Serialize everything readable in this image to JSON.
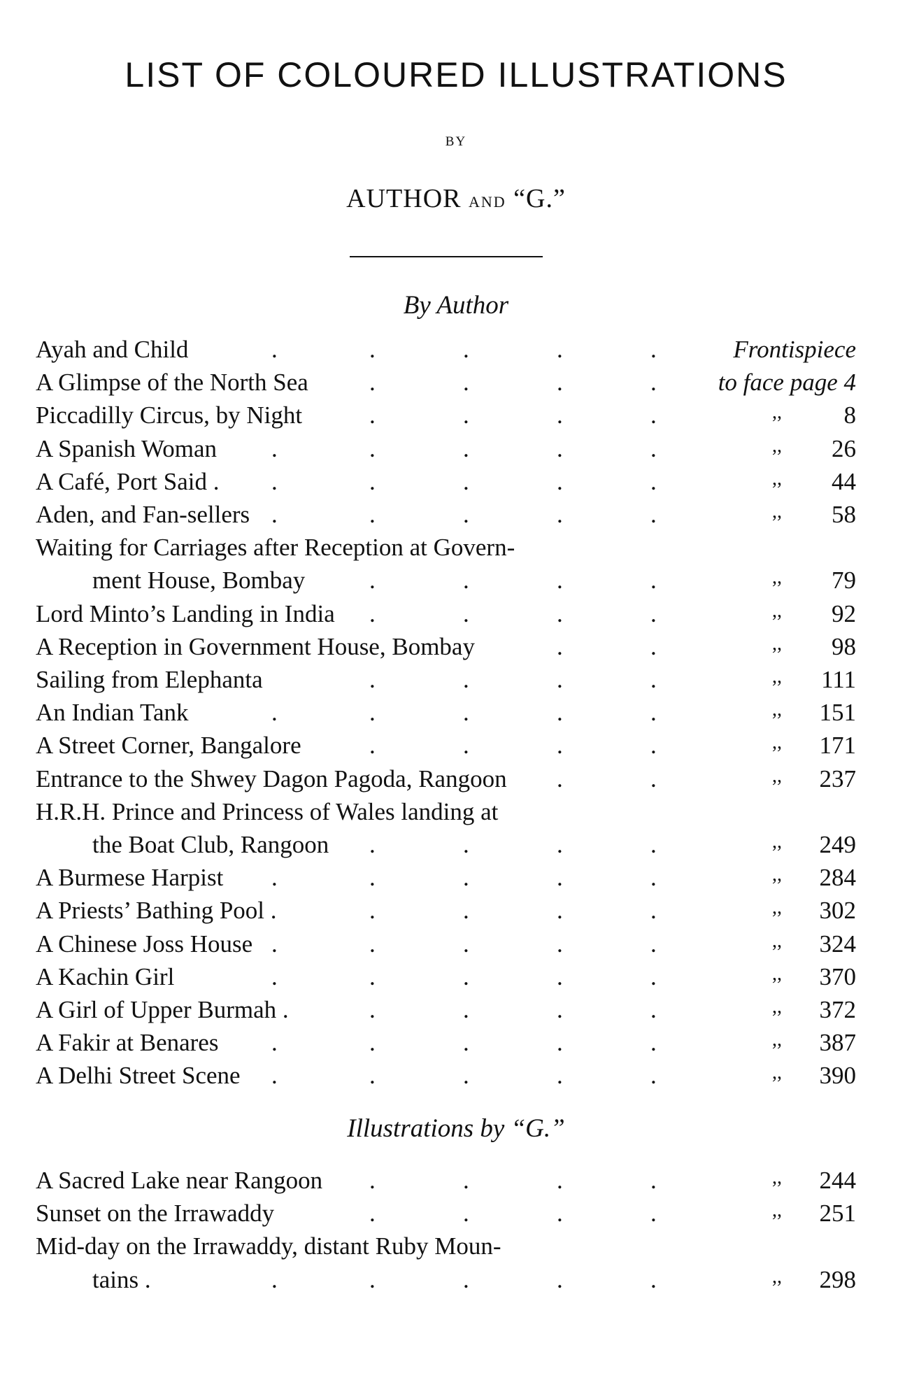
{
  "title": "LIST OF COLOURED ILLUSTRATIONS",
  "by": "BY",
  "authors": {
    "first": "AUTHOR",
    "and": "AND",
    "second": "“G.”"
  },
  "sections": [
    {
      "heading": "By Author",
      "entries": [
        {
          "title": "Ayah and Child",
          "ditto": "",
          "page": "Frontispiece"
        },
        {
          "title": "A Glimpse of the North Sea",
          "ditto": "",
          "page": "to face page 4"
        },
        {
          "title": "Piccadilly Circus, by Night",
          "ditto": ",,",
          "page": "8"
        },
        {
          "title": "A Spanish Woman",
          "ditto": ",,",
          "page": "26"
        },
        {
          "title": "A Café, Port Said .",
          "ditto": ",,",
          "page": "44"
        },
        {
          "title": "Aden, and Fan-sellers",
          "ditto": ",,",
          "page": "58"
        },
        {
          "title": "Waiting for Carriages after Reception at Govern-",
          "ditto": "",
          "page": ""
        },
        {
          "title": "ment House, Bombay",
          "ditto": ",,",
          "page": "79",
          "indent": true
        },
        {
          "title": "Lord Minto’s Landing in India",
          "ditto": ",,",
          "page": "92"
        },
        {
          "title": "A Reception in Government House, Bombay",
          "ditto": ",,",
          "page": "98"
        },
        {
          "title": "Sailing from Elephanta",
          "ditto": ",,",
          "page": "111"
        },
        {
          "title": "An Indian Tank",
          "ditto": ",,",
          "page": "151"
        },
        {
          "title": "A Street Corner, Bangalore",
          "ditto": ",,",
          "page": "171"
        },
        {
          "title": "Entrance to the Shwey Dagon Pagoda, Rangoon",
          "ditto": ",,",
          "page": "237"
        },
        {
          "title": "H.R.H. Prince and Princess of Wales landing at",
          "ditto": "",
          "page": ""
        },
        {
          "title": "the Boat Club, Rangoon",
          "ditto": ",,",
          "page": "249",
          "indent": true
        },
        {
          "title": "A Burmese Harpist",
          "ditto": ",,",
          "page": "284"
        },
        {
          "title": "A Priests’ Bathing Pool .",
          "ditto": ",,",
          "page": "302"
        },
        {
          "title": "A Chinese Joss House",
          "ditto": ",,",
          "page": "324"
        },
        {
          "title": "A Kachin Girl",
          "ditto": ",,",
          "page": "370"
        },
        {
          "title": "A Girl of Upper Burmah .",
          "ditto": ",,",
          "page": "372"
        },
        {
          "title": "A Fakir at Benares",
          "ditto": ",,",
          "page": "387"
        },
        {
          "title": "A Delhi Street Scene",
          "ditto": ",,",
          "page": "390"
        }
      ]
    },
    {
      "heading": "Illustrations by “G.”",
      "entries": [
        {
          "title": "A Sacred Lake near Rangoon",
          "ditto": ",,",
          "page": "244"
        },
        {
          "title": "Sunset on the Irrawaddy",
          "ditto": ",,",
          "page": "251"
        },
        {
          "title": "Mid-day on the Irrawaddy, distant Ruby Moun-",
          "ditto": "",
          "page": ""
        },
        {
          "title": "tains .",
          "ditto": ",,",
          "page": "298",
          "indent": true
        }
      ]
    }
  ]
}
